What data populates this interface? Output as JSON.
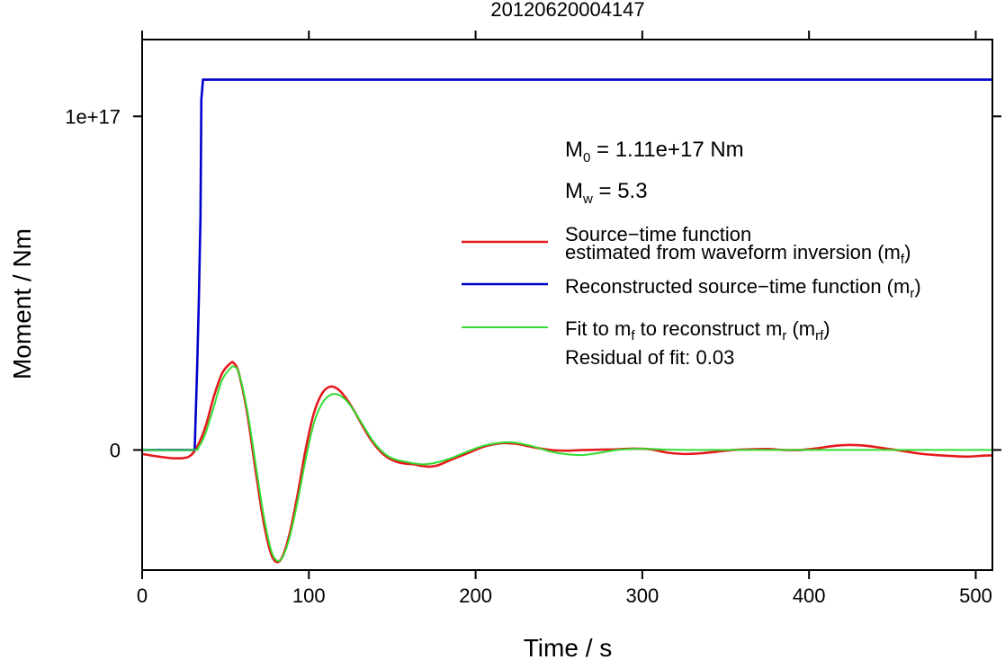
{
  "chart_data": {
    "type": "line",
    "title": "20120620004147",
    "xlabel": "Time / s",
    "ylabel": "Moment / Nm",
    "xlim": [
      0,
      510
    ],
    "ylim": [
      -3.6e+16,
      1.23e+17
    ],
    "x_ticks": [
      0,
      100,
      200,
      300,
      400,
      500
    ],
    "x_tick_labels": [
      "0",
      "100",
      "200",
      "300",
      "400",
      "500"
    ],
    "y_ticks": [
      0,
      1e+17
    ],
    "y_tick_labels": [
      "0",
      "1e+17"
    ],
    "grid": false,
    "legend_position": "right",
    "annotations": {
      "m0": {
        "prefix": "M",
        "sub": "0",
        "text": " = 1.11e+17 Nm"
      },
      "mw": {
        "prefix": "M",
        "sub": "w",
        "text": " = 5.3"
      },
      "residual": "Residual of fit: 0.03"
    },
    "legend": [
      {
        "line1": "Source−time function",
        "line2": "estimated from waveform inversion (m",
        "sub": "f",
        "tail": ")",
        "color": "#e41a1c"
      },
      {
        "line1": "Reconstructed source−time function (m",
        "sub": "r",
        "tail": ")",
        "color": "#0000cc"
      },
      {
        "line1": "Fit to m",
        "sub1": "f",
        "mid": " to reconstruct m",
        "sub2": "r",
        "mid2": " (m",
        "sub3": "rf",
        "tail": ")",
        "color": "#33dd33"
      }
    ],
    "series": [
      {
        "name": "Source−time function estimated from waveform inversion (mf)",
        "color": "#e41a1c",
        "x": [
          0,
          10,
          20,
          28,
          33,
          38,
          43,
          48,
          53,
          55,
          58,
          63,
          68,
          73,
          78,
          83,
          88,
          93,
          98,
          103,
          108,
          113,
          118,
          123,
          128,
          133,
          138,
          143,
          148,
          153,
          158,
          163,
          168,
          173,
          178,
          185,
          195,
          205,
          215,
          220,
          225,
          235,
          245,
          255,
          265,
          275,
          285,
          295,
          305,
          315,
          325,
          335,
          345,
          355,
          365,
          375,
          385,
          395,
          405,
          415,
          425,
          435,
          445,
          455,
          465,
          475,
          485,
          495,
          505,
          510
        ],
        "y": [
          -1200000000000000.0,
          -2000000000000000.0,
          -2500000000000000.0,
          -2000000000000000.0,
          1000000000000000.0,
          7000000000000000.0,
          1.6e+16,
          2.3e+16,
          2.6e+16,
          2.6e+16,
          2.3e+16,
          1.1e+16,
          -6000000000000000.0,
          -2.2e+16,
          -3.2e+16,
          -3.3e+16,
          -2.6e+16,
          -1.4e+16,
          0,
          1.1e+16,
          1.7e+16,
          1.9e+16,
          1.8e+16,
          1.5e+16,
          1.1e+16,
          6500000000000000.0,
          2500000000000000.0,
          -500000000000000.0,
          -2500000000000000.0,
          -3600000000000000.0,
          -4100000000000000.0,
          -4300000000000000.0,
          -4800000000000000.0,
          -5000000000000000.0,
          -4500000000000000.0,
          -3000000000000000.0,
          -1000000000000000.0,
          1000000000000000.0,
          2000000000000000.0,
          2000000000000000.0,
          1800000000000000.0,
          800000000000000.0,
          0,
          -200000000000000.0,
          0,
          100000000000000.0,
          200000000000000.0,
          400000000000000.0,
          200000000000000.0,
          -800000000000000.0,
          -1200000000000000.0,
          -1000000000000000.0,
          -500000000000000.0,
          0,
          200000000000000.0,
          300000000000000.0,
          0,
          0,
          500000000000000.0,
          1200000000000000.0,
          1500000000000000.0,
          1200000000000000.0,
          500000000000000.0,
          -200000000000000.0,
          -1000000000000000.0,
          -1500000000000000.0,
          -1800000000000000.0,
          -2000000000000000.0,
          -1700000000000000.0,
          -1600000000000000.0
        ]
      },
      {
        "name": "Reconstructed source−time function (mr)",
        "color": "#0000cc",
        "x": [
          0,
          31.5,
          33,
          34,
          35,
          35.5,
          36.5,
          510
        ],
        "y": [
          0,
          0,
          2.5e+16,
          4.5e+16,
          7e+16,
          1.05e+17,
          1.11e+17,
          1.11e+17
        ]
      },
      {
        "name": "Fit to mf to reconstruct mr (mrf)",
        "color": "#33dd33",
        "x": [
          0,
          30,
          34,
          38,
          43,
          48,
          53,
          55,
          58,
          63,
          68,
          73,
          78,
          83,
          88,
          93,
          98,
          103,
          108,
          113,
          118,
          123,
          128,
          133,
          138,
          143,
          148,
          153,
          158,
          163,
          168,
          173,
          178,
          185,
          195,
          205,
          215,
          220,
          225,
          235,
          245,
          255,
          265,
          275,
          285,
          295,
          305,
          315,
          330,
          350,
          370,
          400,
          430,
          460,
          490,
          510
        ],
        "y": [
          0,
          0,
          1000000000000000.0,
          5000000000000000.0,
          1.3e+16,
          2.1e+16,
          2.45e+16,
          2.5e+16,
          2.3e+16,
          1.2e+16,
          -4000000000000000.0,
          -2e+16,
          -3.1e+16,
          -3.3e+16,
          -2.7e+16,
          -1.6e+16,
          -3000000000000000.0,
          8000000000000000.0,
          1.4e+16,
          1.65e+16,
          1.65e+16,
          1.45e+16,
          1.1e+16,
          7000000000000000.0,
          3000000000000000.0,
          0,
          -2000000000000000.0,
          -3000000000000000.0,
          -3500000000000000.0,
          -4000000000000000.0,
          -4300000000000000.0,
          -4100000000000000.0,
          -3600000000000000.0,
          -2500000000000000.0,
          -500000000000000.0,
          1300000000000000.0,
          2200000000000000.0,
          2300000000000000.0,
          2100000000000000.0,
          1000000000000000.0,
          -500000000000000.0,
          -1300000000000000.0,
          -1500000000000000.0,
          -800000000000000.0,
          0,
          300000000000000.0,
          300000000000000.0,
          100000000000000.0,
          0,
          0,
          0,
          0,
          0,
          0,
          0,
          0
        ]
      }
    ]
  }
}
